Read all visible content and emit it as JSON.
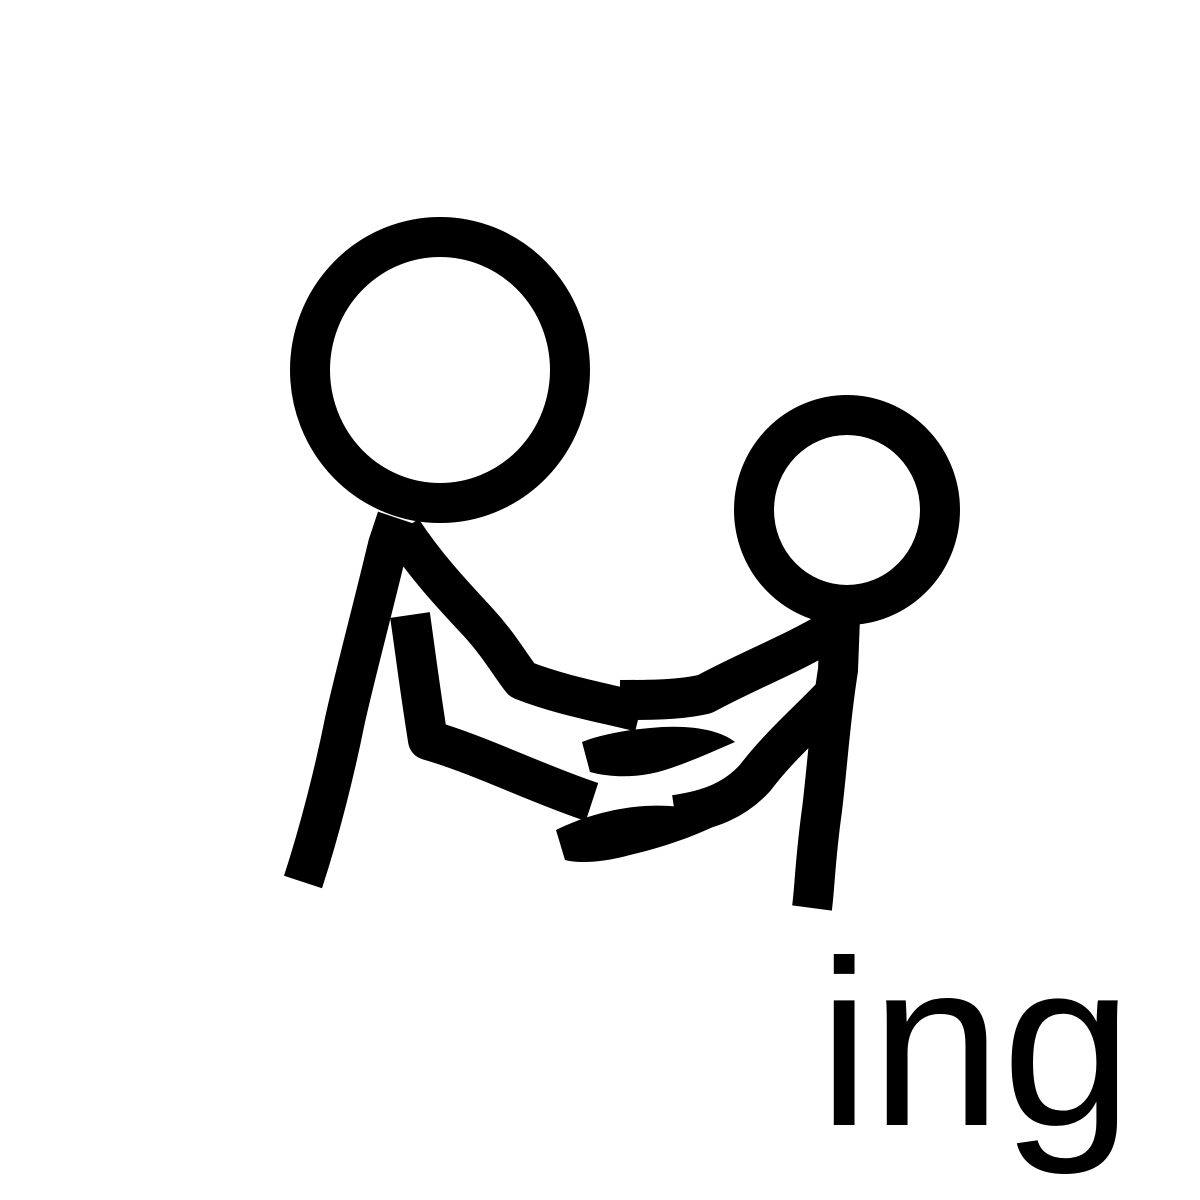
{
  "symbol": {
    "icon": "two-people-holding-hands-icon",
    "caption": "ing",
    "colors": {
      "ink": "#000000",
      "background": "#ffffff"
    }
  }
}
